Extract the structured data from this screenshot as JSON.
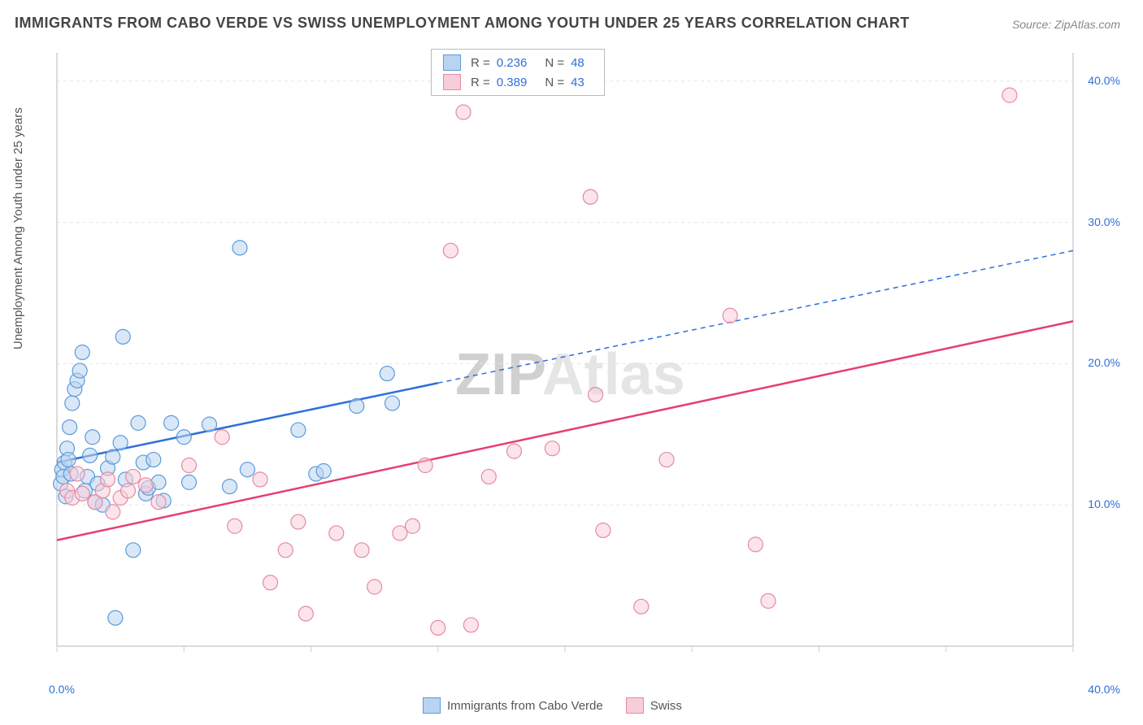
{
  "title": "IMMIGRANTS FROM CABO VERDE VS SWISS UNEMPLOYMENT AMONG YOUTH UNDER 25 YEARS CORRELATION CHART",
  "source": "Source: ZipAtlas.com",
  "ylabel": "Unemployment Among Youth under 25 years",
  "watermark": {
    "zip": "ZIP",
    "atlas": "Atlas"
  },
  "chart": {
    "type": "scatter",
    "xlim": [
      0,
      40
    ],
    "ylim": [
      0,
      42
    ],
    "x_ticks": [
      0,
      5,
      10,
      15,
      20,
      25,
      30,
      35,
      40
    ],
    "x_tick_labels": {
      "0": "0.0%",
      "40": "40.0%"
    },
    "y_ticks": [
      10,
      20,
      30,
      40
    ],
    "y_tick_labels": {
      "10": "10.0%",
      "20": "20.0%",
      "30": "30.0%",
      "40": "40.0%"
    },
    "grid_color": "#e6e6e6",
    "axis_color": "#cfcfcf",
    "background_color": "#ffffff",
    "label_fontsize": 15,
    "tick_fontsize": 14,
    "title_fontsize": 18,
    "marker_radius": 9,
    "marker_opacity": 0.55,
    "line_width": 2.5,
    "series": [
      {
        "name": "Immigrants from Cabo Verde",
        "color_fill": "#b9d4f1",
        "color_stroke": "#5a9bdc",
        "line_color": "#2e6fd8",
        "R": "0.236",
        "N": "48",
        "regression": {
          "x1": 0,
          "y1": 13,
          "x2": 15,
          "y2": 19,
          "x2_ext": 40,
          "y2_ext": 28,
          "solid_until_x": 15
        },
        "points": [
          [
            0.2,
            12.5
          ],
          [
            0.3,
            13.0
          ],
          [
            0.4,
            14.0
          ],
          [
            0.5,
            15.5
          ],
          [
            0.6,
            17.2
          ],
          [
            0.7,
            18.2
          ],
          [
            0.8,
            18.8
          ],
          [
            0.9,
            19.5
          ],
          [
            1.0,
            20.8
          ],
          [
            1.1,
            11.0
          ],
          [
            1.2,
            12.0
          ],
          [
            1.3,
            13.5
          ],
          [
            1.5,
            10.2
          ],
          [
            1.6,
            11.5
          ],
          [
            1.8,
            10.0
          ],
          [
            2.0,
            12.6
          ],
          [
            2.2,
            13.4
          ],
          [
            2.5,
            14.4
          ],
          [
            2.6,
            21.9
          ],
          [
            2.7,
            11.8
          ],
          [
            3.0,
            6.8
          ],
          [
            3.2,
            15.8
          ],
          [
            3.4,
            13.0
          ],
          [
            3.5,
            10.8
          ],
          [
            3.6,
            11.2
          ],
          [
            2.3,
            2.0
          ],
          [
            4.0,
            11.6
          ],
          [
            4.2,
            10.3
          ],
          [
            4.5,
            15.8
          ],
          [
            5.0,
            14.8
          ],
          [
            5.2,
            11.6
          ],
          [
            6.0,
            15.7
          ],
          [
            6.8,
            11.3
          ],
          [
            7.2,
            28.2
          ],
          [
            7.5,
            12.5
          ],
          [
            9.5,
            15.3
          ],
          [
            10.2,
            12.2
          ],
          [
            10.5,
            12.4
          ],
          [
            11.8,
            17.0
          ],
          [
            13.0,
            19.3
          ],
          [
            13.2,
            17.2
          ],
          [
            1.4,
            14.8
          ],
          [
            0.15,
            11.5
          ],
          [
            0.25,
            12.0
          ],
          [
            0.35,
            10.6
          ],
          [
            0.45,
            13.2
          ],
          [
            0.55,
            12.2
          ],
          [
            3.8,
            13.2
          ]
        ]
      },
      {
        "name": "Swiss",
        "color_fill": "#f7cdd8",
        "color_stroke": "#e58aa3",
        "line_color": "#e63e6d",
        "R": "0.389",
        "N": "43",
        "regression": {
          "x1": 0,
          "y1": 7.5,
          "x2": 40,
          "y2": 23,
          "solid_until_x": 40
        },
        "points": [
          [
            0.4,
            11.0
          ],
          [
            0.6,
            10.5
          ],
          [
            0.8,
            12.2
          ],
          [
            1.0,
            10.8
          ],
          [
            1.5,
            10.2
          ],
          [
            1.8,
            11.0
          ],
          [
            2.0,
            11.8
          ],
          [
            2.2,
            9.5
          ],
          [
            2.5,
            10.5
          ],
          [
            2.8,
            11.0
          ],
          [
            3.0,
            12.0
          ],
          [
            3.5,
            11.4
          ],
          [
            4.0,
            10.2
          ],
          [
            5.2,
            12.8
          ],
          [
            6.5,
            14.8
          ],
          [
            7.0,
            8.5
          ],
          [
            8.0,
            11.8
          ],
          [
            8.4,
            4.5
          ],
          [
            9.0,
            6.8
          ],
          [
            9.5,
            8.8
          ],
          [
            9.8,
            2.3
          ],
          [
            11.0,
            8.0
          ],
          [
            12.0,
            6.8
          ],
          [
            12.5,
            4.2
          ],
          [
            13.5,
            8.0
          ],
          [
            14.0,
            8.5
          ],
          [
            14.5,
            12.8
          ],
          [
            15.0,
            1.3
          ],
          [
            15.5,
            28.0
          ],
          [
            16.0,
            37.8
          ],
          [
            16.3,
            1.5
          ],
          [
            17.0,
            12.0
          ],
          [
            18.0,
            13.8
          ],
          [
            19.5,
            14.0
          ],
          [
            21.0,
            31.8
          ],
          [
            21.2,
            17.8
          ],
          [
            21.5,
            8.2
          ],
          [
            23.0,
            2.8
          ],
          [
            24.0,
            13.2
          ],
          [
            26.5,
            23.4
          ],
          [
            27.5,
            7.2
          ],
          [
            28.0,
            3.2
          ],
          [
            37.5,
            39.0
          ]
        ]
      }
    ]
  },
  "legend_top": [
    {
      "swatch_fill": "#b9d4f1",
      "swatch_stroke": "#5a9bdc",
      "R": "0.236",
      "N": "48"
    },
    {
      "swatch_fill": "#f7cdd8",
      "swatch_stroke": "#e58aa3",
      "R": "0.389",
      "N": "43"
    }
  ],
  "legend_bottom": [
    {
      "swatch_fill": "#b9d4f1",
      "swatch_stroke": "#5a9bdc",
      "label": "Immigrants from Cabo Verde"
    },
    {
      "swatch_fill": "#f7cdd8",
      "swatch_stroke": "#e58aa3",
      "label": "Swiss"
    }
  ]
}
